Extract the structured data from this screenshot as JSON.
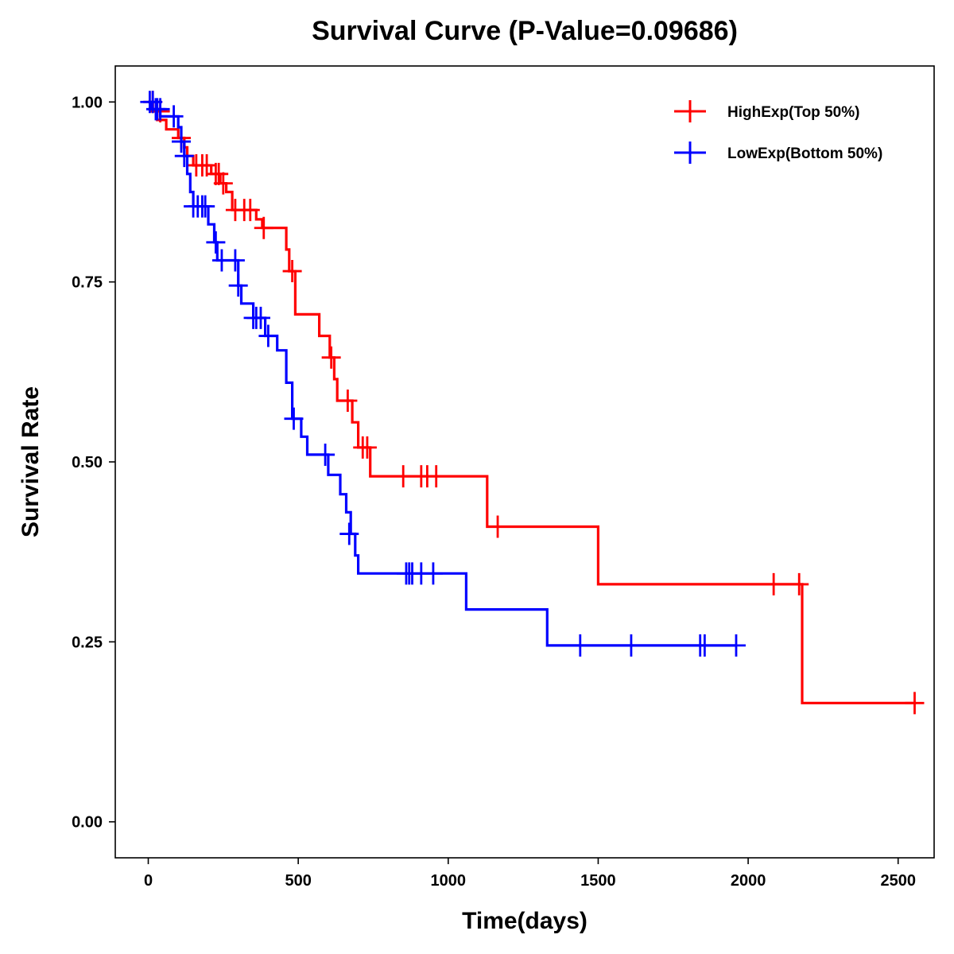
{
  "chart_data": {
    "type": "line",
    "subtype": "kaplan-meier-step",
    "title": "Survival Curve (P-Value=0.09686)",
    "xlabel": "Time(days)",
    "ylabel": "Survival Rate",
    "xlim": [
      -110,
      2620
    ],
    "ylim": [
      -0.05,
      1.05
    ],
    "xticks": [
      0,
      500,
      1000,
      1500,
      2000,
      2500
    ],
    "xtick_labels": [
      "0",
      "500",
      "1000",
      "1500",
      "2000",
      "2500"
    ],
    "yticks": [
      0,
      0.25,
      0.5,
      0.75,
      1.0
    ],
    "ytick_labels": [
      "0.00",
      "0.25",
      "0.50",
      "0.75",
      "1.00"
    ],
    "grid": false,
    "legend_position": "top-right",
    "series": [
      {
        "name": "HighExp(Top 50%)",
        "color": "#ff0000",
        "steps": [
          [
            0,
            1.0
          ],
          [
            15,
            0.987
          ],
          [
            30,
            0.975
          ],
          [
            60,
            0.962
          ],
          [
            100,
            0.95
          ],
          [
            120,
            0.937
          ],
          [
            130,
            0.925
          ],
          [
            150,
            0.912
          ],
          [
            210,
            0.9
          ],
          [
            240,
            0.887
          ],
          [
            260,
            0.875
          ],
          [
            280,
            0.85
          ],
          [
            360,
            0.837
          ],
          [
            380,
            0.825
          ],
          [
            460,
            0.795
          ],
          [
            470,
            0.765
          ],
          [
            490,
            0.705
          ],
          [
            570,
            0.675
          ],
          [
            605,
            0.645
          ],
          [
            620,
            0.615
          ],
          [
            630,
            0.585
          ],
          [
            680,
            0.555
          ],
          [
            700,
            0.52
          ],
          [
            740,
            0.48
          ],
          [
            1130,
            0.41
          ],
          [
            1500,
            0.33
          ],
          [
            2180,
            0.165
          ],
          [
            2560,
            0.165
          ]
        ],
        "censors": [
          [
            15,
            1.0
          ],
          [
            40,
            0.987
          ],
          [
            110,
            0.95
          ],
          [
            160,
            0.912
          ],
          [
            180,
            0.912
          ],
          [
            195,
            0.912
          ],
          [
            225,
            0.9
          ],
          [
            235,
            0.9
          ],
          [
            250,
            0.887
          ],
          [
            290,
            0.85
          ],
          [
            320,
            0.85
          ],
          [
            340,
            0.85
          ],
          [
            385,
            0.825
          ],
          [
            480,
            0.765
          ],
          [
            610,
            0.645
          ],
          [
            665,
            0.585
          ],
          [
            715,
            0.52
          ],
          [
            730,
            0.52
          ],
          [
            850,
            0.48
          ],
          [
            910,
            0.48
          ],
          [
            930,
            0.48
          ],
          [
            960,
            0.48
          ],
          [
            1165,
            0.41
          ],
          [
            2085,
            0.33
          ],
          [
            2170,
            0.33
          ],
          [
            2555,
            0.165
          ]
        ]
      },
      {
        "name": "LowExp(Bottom 50%)",
        "color": "#0000ff",
        "steps": [
          [
            0,
            1.0
          ],
          [
            10,
            0.99
          ],
          [
            40,
            0.98
          ],
          [
            100,
            0.965
          ],
          [
            110,
            0.945
          ],
          [
            120,
            0.925
          ],
          [
            130,
            0.9
          ],
          [
            140,
            0.875
          ],
          [
            150,
            0.855
          ],
          [
            200,
            0.83
          ],
          [
            220,
            0.805
          ],
          [
            230,
            0.78
          ],
          [
            300,
            0.745
          ],
          [
            310,
            0.72
          ],
          [
            350,
            0.7
          ],
          [
            390,
            0.675
          ],
          [
            430,
            0.655
          ],
          [
            460,
            0.61
          ],
          [
            480,
            0.56
          ],
          [
            510,
            0.535
          ],
          [
            530,
            0.51
          ],
          [
            600,
            0.482
          ],
          [
            640,
            0.455
          ],
          [
            660,
            0.43
          ],
          [
            675,
            0.4
          ],
          [
            690,
            0.37
          ],
          [
            700,
            0.345
          ],
          [
            1060,
            0.295
          ],
          [
            1330,
            0.245
          ],
          [
            1960,
            0.245
          ]
        ],
        "censors": [
          [
            5,
            1.0
          ],
          [
            15,
            1.0
          ],
          [
            25,
            0.99
          ],
          [
            30,
            0.99
          ],
          [
            40,
            0.99
          ],
          [
            85,
            0.98
          ],
          [
            110,
            0.945
          ],
          [
            120,
            0.925
          ],
          [
            150,
            0.855
          ],
          [
            165,
            0.855
          ],
          [
            180,
            0.855
          ],
          [
            190,
            0.855
          ],
          [
            225,
            0.805
          ],
          [
            245,
            0.78
          ],
          [
            290,
            0.78
          ],
          [
            300,
            0.745
          ],
          [
            350,
            0.7
          ],
          [
            360,
            0.7
          ],
          [
            375,
            0.7
          ],
          [
            400,
            0.675
          ],
          [
            485,
            0.56
          ],
          [
            590,
            0.51
          ],
          [
            670,
            0.4
          ],
          [
            860,
            0.345
          ],
          [
            870,
            0.345
          ],
          [
            880,
            0.345
          ],
          [
            910,
            0.345
          ],
          [
            950,
            0.345
          ],
          [
            1440,
            0.245
          ],
          [
            1610,
            0.245
          ],
          [
            1840,
            0.245
          ],
          [
            1855,
            0.245
          ],
          [
            1960,
            0.245
          ]
        ]
      }
    ]
  }
}
